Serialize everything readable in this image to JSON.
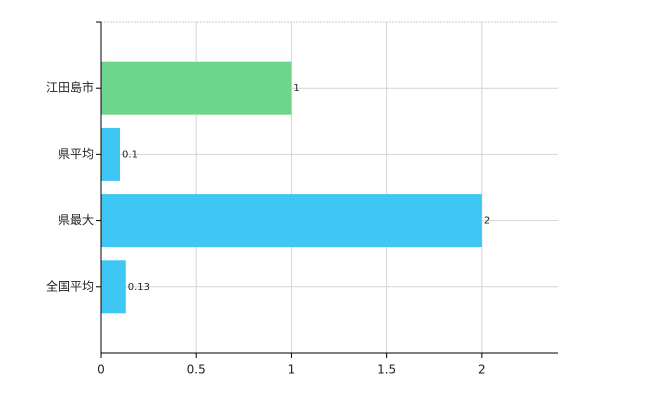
{
  "chart_data": {
    "type": "barh",
    "categories": [
      "江田島市",
      "県平均",
      "県最大",
      "全国平均"
    ],
    "values": [
      1,
      0.1,
      2,
      0.13
    ],
    "colors": [
      "#6dd58c",
      "#3ec6f5",
      "#3ec6f5",
      "#3ec6f5"
    ],
    "xlim": [
      0,
      2.4
    ],
    "xticks": [
      0,
      0.5,
      1,
      1.5,
      2
    ],
    "grid": true
  }
}
